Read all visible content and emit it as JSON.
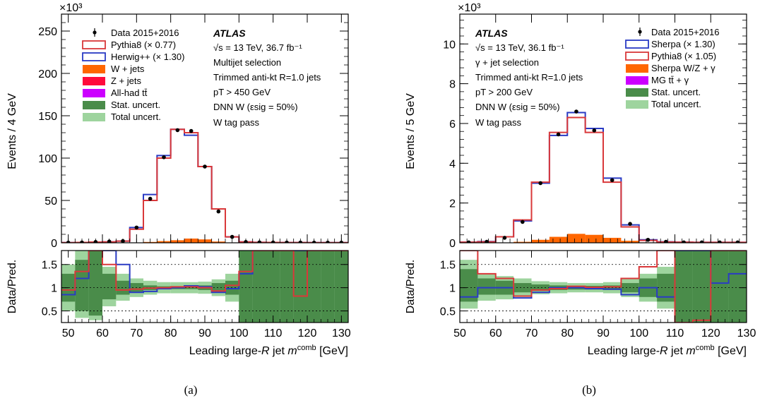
{
  "captions": [
    "(a)",
    "(b)"
  ],
  "chart_data": [
    {
      "type": "bar",
      "exponent_label": "×10³",
      "ylabel": "Events / 4 GeV",
      "ratio_ylabel": "Data/Pred.",
      "xlabel": "Leading large-R jet m^comb [GeV]",
      "xlabel_parts": {
        "pre": "Leading large-",
        "r": "R",
        "mid": " jet ",
        "m": "m",
        "sup": "comb",
        "post": " [GeV]"
      },
      "xlim": [
        48,
        132
      ],
      "ylim": [
        0,
        270
      ],
      "yticks": [
        0,
        50,
        100,
        150,
        200,
        250
      ],
      "xticks": [
        50,
        60,
        70,
        80,
        90,
        100,
        110,
        120,
        130
      ],
      "ratio_ylim": [
        0.25,
        1.8
      ],
      "ratio_yticks": [
        0.5,
        1,
        1.5
      ],
      "ratio_ytick_labels": [
        "0.5",
        "1",
        "1.5"
      ],
      "legend_entries": [
        "Data 2015+2016",
        "Pythia8 (× 0.77)",
        "Herwig++ (× 1.30)",
        "W + jets",
        "Z + jets",
        "All-had tt̄",
        "Stat. uncert.",
        "Total uncert."
      ],
      "atlas_label": "ATLAS",
      "info_lines": [
        "√s = 13 TeV, 36.7 fb⁻¹",
        "Multijet selection",
        "Trimmed anti-kt R=1.0 jets",
        "pT > 450 GeV",
        "DNN W (εsig = 50%)",
        "W tag pass"
      ],
      "bin_edges": [
        48,
        52,
        56,
        60,
        64,
        68,
        72,
        76,
        80,
        84,
        88,
        92,
        96,
        100,
        104,
        108,
        112,
        116,
        120,
        124,
        128,
        132
      ],
      "series": [
        {
          "name": "Data 2015+2016",
          "values": [
            0.2,
            0.4,
            1,
            1.5,
            2,
            18,
            52,
            101,
            133,
            132,
            90,
            37,
            7,
            1,
            0.5,
            0.4,
            0.3,
            0.3,
            0.2,
            0.2,
            0.2
          ]
        },
        {
          "name": "Pythia8 (× 0.77)",
          "values": [
            0.2,
            0.4,
            0.8,
            1,
            2,
            16,
            50,
            100,
            134,
            130,
            90,
            40,
            7,
            1,
            0.5,
            0.4,
            0.3,
            0.3,
            0.2,
            0.2,
            0.2
          ]
        },
        {
          "name": "Herwig++ (× 1.30)",
          "values": [
            0.2,
            0.4,
            0.8,
            1,
            2,
            18,
            57,
            103,
            134,
            127,
            90,
            40,
            7,
            1,
            0.5,
            0.4,
            0.3,
            0.3,
            0.2,
            0.2,
            0.2
          ]
        },
        {
          "name": "W + jets",
          "values": [
            0,
            0,
            0,
            0,
            0,
            0.3,
            1,
            2,
            3,
            5,
            4,
            1.5,
            0.3,
            0,
            0,
            0,
            0,
            0,
            0,
            0,
            0
          ]
        }
      ],
      "ratio": {
        "pythia": [
          0.95,
          1.35,
          1.8,
          1.5,
          0.95,
          0.97,
          0.99,
          1,
          1.02,
          1.02,
          1,
          0.93,
          1.05,
          1.35,
          1.8,
          1.8,
          1.8,
          0.82,
          1.8,
          1.8,
          1.8
        ],
        "herwig": [
          0.85,
          1.2,
          1.8,
          1.8,
          1.5,
          0.9,
          0.92,
          0.98,
          1,
          1.04,
          1.02,
          0.9,
          0.98,
          1.3,
          1.8,
          1.8,
          1.8,
          1.8,
          1.8,
          1.8,
          1.8
        ],
        "stat_lo": [
          0.7,
          0.5,
          0.4,
          0.75,
          0.85,
          0.9,
          0.95,
          0.97,
          0.97,
          0.97,
          0.95,
          0.9,
          0.85,
          0.25,
          0.25,
          0.25,
          0.25,
          0.25,
          0.25,
          0.25,
          0.25
        ],
        "stat_hi": [
          1.3,
          1.6,
          1.8,
          1.3,
          1.15,
          1.1,
          1.05,
          1.03,
          1.03,
          1.03,
          1.05,
          1.1,
          1.15,
          1.8,
          1.8,
          1.8,
          1.8,
          1.8,
          1.8,
          1.8,
          1.8
        ],
        "tot_lo": [
          0.5,
          0.35,
          0.3,
          0.6,
          0.72,
          0.8,
          0.85,
          0.88,
          0.88,
          0.88,
          0.87,
          0.82,
          0.7,
          0.25,
          0.25,
          0.25,
          0.25,
          0.25,
          0.25,
          0.25,
          0.25
        ],
        "tot_hi": [
          1.5,
          1.8,
          1.8,
          1.45,
          1.3,
          1.2,
          1.15,
          1.12,
          1.12,
          1.12,
          1.13,
          1.18,
          1.3,
          1.8,
          1.8,
          1.8,
          1.8,
          1.8,
          1.8,
          1.8,
          1.8
        ]
      }
    },
    {
      "type": "bar",
      "exponent_label": "×10³",
      "ylabel": "Events / 5 GeV",
      "ratio_ylabel": "Data/Pred.",
      "xlabel": "Leading large-R jet m^comb [GeV]",
      "xlabel_parts": {
        "pre": "Leading large-",
        "r": "R",
        "mid": " jet ",
        "m": "m",
        "sup": "comb",
        "post": " [GeV]"
      },
      "xlim": [
        50,
        130
      ],
      "ylim": [
        0,
        11.5
      ],
      "yticks": [
        0,
        2,
        4,
        6,
        8,
        10
      ],
      "xticks": [
        50,
        60,
        70,
        80,
        90,
        100,
        110,
        120,
        130
      ],
      "ratio_ylim": [
        0.25,
        1.8
      ],
      "ratio_yticks": [
        0.5,
        1,
        1.5
      ],
      "ratio_ytick_labels": [
        "0.5",
        "1",
        "1.5"
      ],
      "legend_entries": [
        "Data 2015+2016",
        "Sherpa (× 1.30)",
        "Pythia8 (× 1.05)",
        "Sherpa W/Z + γ",
        "MG tt̄ + γ",
        "Stat. uncert.",
        "Total uncert."
      ],
      "atlas_label": "ATLAS",
      "info_lines": [
        "√s = 13 TeV, 36.1 fb⁻¹",
        "γ + jet selection",
        "Trimmed anti-kt R=1.0 jets",
        "pT > 200 GeV",
        "DNN W (εsig = 50%)",
        "W tag pass"
      ],
      "bin_edges": [
        50,
        55,
        60,
        65,
        70,
        75,
        80,
        85,
        90,
        95,
        100,
        105,
        110,
        115,
        120,
        125,
        130
      ],
      "series": [
        {
          "name": "Data 2015+2016",
          "values": [
            0.02,
            0.05,
            0.25,
            1.05,
            3,
            5.45,
            6.6,
            5.65,
            3.15,
            0.95,
            0.15,
            0.05,
            0.02,
            0.02,
            0.02,
            0.02
          ]
        },
        {
          "name": "Sherpa (× 1.30)",
          "values": [
            0.03,
            0.06,
            0.3,
            1.1,
            3,
            5.4,
            6.55,
            5.75,
            3.25,
            0.9,
            0.15,
            0.05,
            0.03,
            0.02,
            0.02,
            0.02
          ]
        },
        {
          "name": "Pythia8 (× 1.05)",
          "values": [
            0.03,
            0.05,
            0.3,
            1.15,
            3.05,
            5.55,
            6.3,
            5.55,
            3.05,
            0.8,
            0.12,
            0.04,
            0.03,
            0.02,
            0.02,
            0.02
          ]
        },
        {
          "name": "Sherpa W/Z + γ",
          "values": [
            0,
            0,
            0,
            0.05,
            0.15,
            0.3,
            0.45,
            0.4,
            0.25,
            0.1,
            0.02,
            0,
            0,
            0,
            0,
            0
          ]
        }
      ],
      "ratio": {
        "sherpa": [
          0.8,
          1,
          1,
          0.78,
          0.9,
          1,
          1,
          0.98,
          0.97,
          0.85,
          1,
          0.8,
          1.8,
          1.8,
          1.1,
          1.3
        ],
        "pythia": [
          1.8,
          1.3,
          1.2,
          0.82,
          0.95,
          0.98,
          1.03,
          1.01,
          1.02,
          1.2,
          1.45,
          1.8,
          0.25,
          0.3,
          1.8,
          1.8
        ],
        "stat_lo": [
          0.7,
          0.85,
          0.85,
          0.9,
          0.93,
          0.95,
          0.96,
          0.96,
          0.95,
          0.9,
          0.8,
          0.7,
          0.25,
          0.25,
          0.25,
          0.25
        ],
        "stat_hi": [
          1.4,
          1.2,
          1.15,
          1.1,
          1.07,
          1.05,
          1.04,
          1.04,
          1.05,
          1.1,
          1.2,
          1.3,
          1.8,
          1.8,
          1.8,
          1.8
        ],
        "tot_lo": [
          0.55,
          0.72,
          0.75,
          0.8,
          0.86,
          0.88,
          0.9,
          0.9,
          0.88,
          0.8,
          0.7,
          0.55,
          0.25,
          0.25,
          0.25,
          0.25
        ],
        "tot_hi": [
          1.6,
          1.3,
          1.25,
          1.2,
          1.14,
          1.12,
          1.1,
          1.1,
          1.12,
          1.2,
          1.3,
          1.45,
          1.8,
          1.8,
          1.8,
          1.8
        ]
      }
    }
  ]
}
